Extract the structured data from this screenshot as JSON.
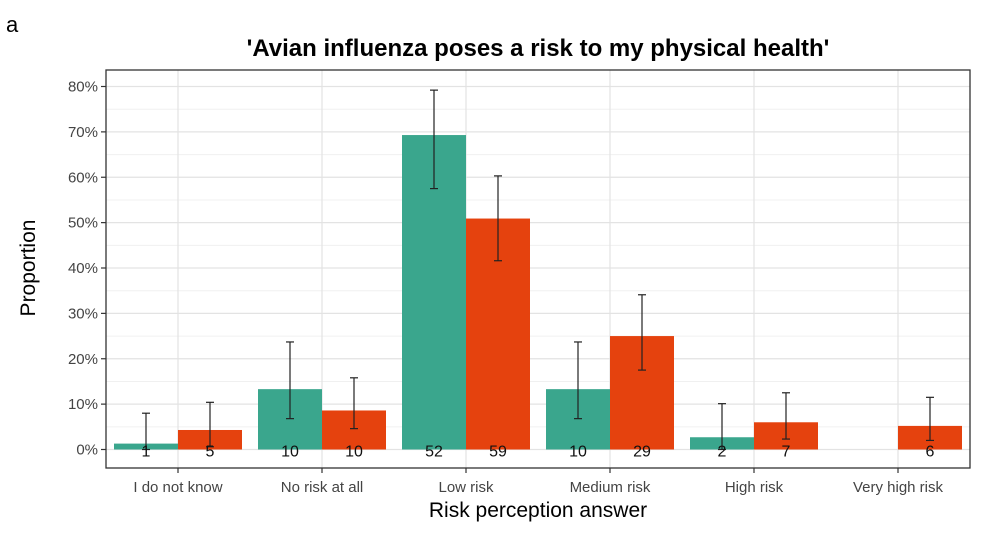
{
  "panel_label": "a",
  "chart_data": {
    "type": "bar",
    "title": "'Avian influenza poses a risk to my physical health'",
    "xlabel": "Risk perception answer",
    "ylabel": "Proportion",
    "ylim": [
      0,
      80
    ],
    "y_ticks": [
      0,
      10,
      20,
      30,
      40,
      50,
      60,
      70,
      80
    ],
    "y_tick_suffix": "%",
    "grid": true,
    "legend": "none",
    "categories": [
      "I do not know",
      "No risk at all",
      "Low risk",
      "Medium risk",
      "High risk",
      "Very high risk"
    ],
    "series": [
      {
        "color": "#3aa68d",
        "values": [
          1.3,
          13.3,
          69.3,
          13.3,
          2.7,
          0
        ],
        "error_low": [
          0,
          6.8,
          57.5,
          6.8,
          0,
          null
        ],
        "error_high": [
          8.0,
          23.7,
          79.2,
          23.7,
          10.1,
          null
        ],
        "counts": [
          "1",
          "10",
          "52",
          "10",
          "2",
          null
        ]
      },
      {
        "color": "#e5420e",
        "values": [
          4.3,
          8.6,
          50.9,
          25.0,
          6.0,
          5.2
        ],
        "error_low": [
          0.6,
          4.6,
          41.6,
          17.5,
          2.3,
          2.0
        ],
        "error_high": [
          10.4,
          15.8,
          60.3,
          34.1,
          12.5,
          11.5
        ],
        "counts": [
          "5",
          "10",
          "59",
          "29",
          "7",
          "6"
        ]
      }
    ]
  }
}
